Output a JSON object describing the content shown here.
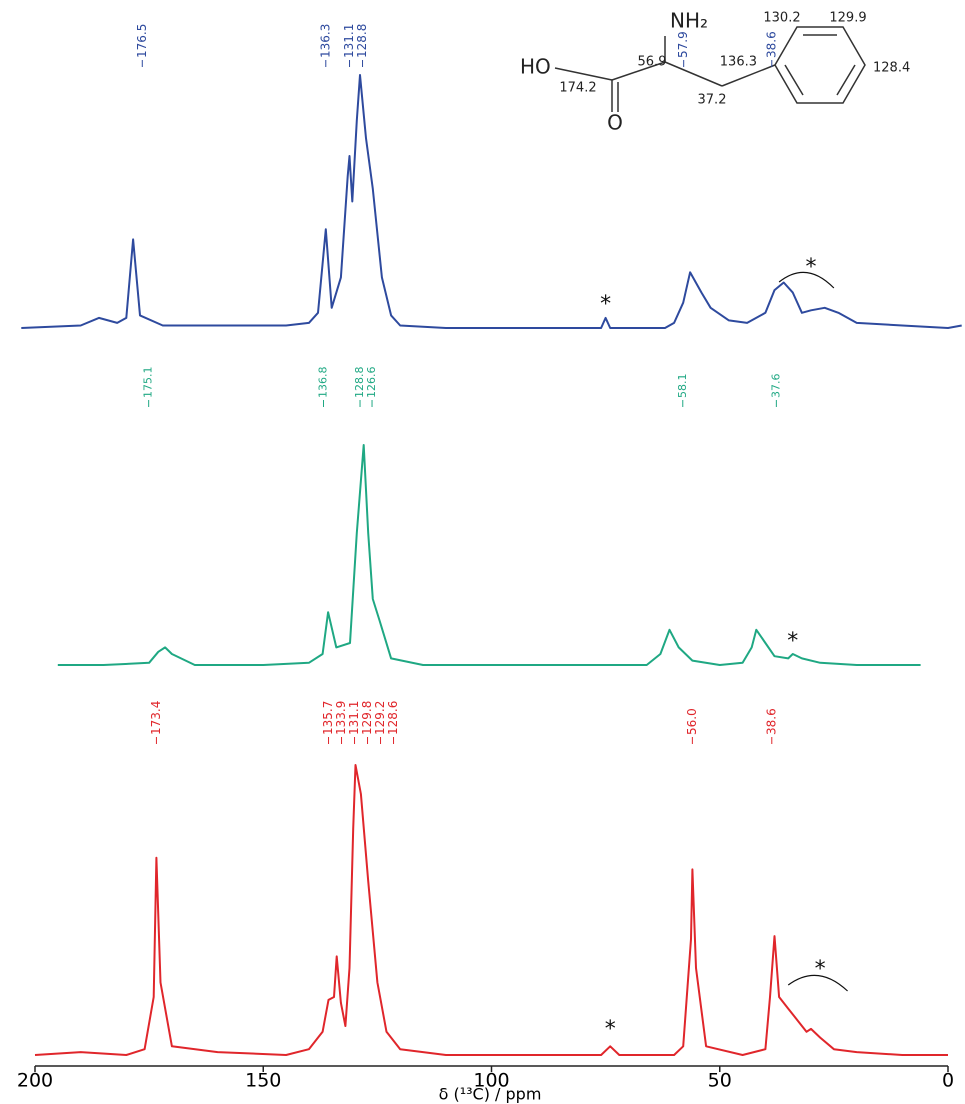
{
  "chart_data": {
    "type": "line",
    "xlim": [
      200,
      0
    ],
    "xticks": [
      200,
      150,
      100,
      50,
      0
    ],
    "xlabel": "δ (¹³C) / ppm",
    "ylim": [
      0,
      100
    ],
    "series": [
      {
        "color": "#2e4a9e",
        "x": [
          203,
          190,
          186,
          182,
          180,
          178.5,
          177,
          172,
          160,
          145,
          140,
          138,
          136.3,
          135,
          133,
          131.5,
          131.1,
          130.5,
          129.5,
          128.8,
          127.5,
          126,
          124,
          122,
          120,
          110,
          100,
          90,
          80,
          76,
          75,
          74,
          70,
          62,
          60,
          58,
          56.5,
          54,
          52,
          48,
          44,
          40,
          38,
          36,
          34,
          32,
          30,
          27,
          24,
          20,
          10,
          0,
          -3
        ],
        "values": [
          0,
          1,
          4,
          2,
          4,
          35,
          5,
          1,
          1,
          1,
          2,
          6,
          39,
          8,
          20,
          60,
          68,
          50,
          82,
          100,
          75,
          55,
          20,
          5,
          1,
          0,
          0,
          0,
          0,
          0,
          4,
          0,
          0,
          0,
          2,
          10,
          22,
          14,
          8,
          3,
          2,
          6,
          15,
          18,
          14,
          6,
          7,
          8,
          6,
          2,
          1,
          0,
          1
        ],
        "peak_labels": [
          176.5,
          136.3,
          131.1,
          128.8,
          57.9,
          38.6
        ],
        "annotations": [
          {
            "text": "*",
            "x": 75
          },
          {
            "text": "*",
            "x": 30
          }
        ]
      },
      {
        "color": "#1fa883",
        "x": [
          195,
          185,
          175,
          173,
          171.5,
          170,
          165,
          150,
          140,
          137,
          135.8,
          134,
          131,
          129.5,
          128,
          127,
          126,
          124.5,
          122,
          115,
          100,
          80,
          66,
          63,
          61,
          59,
          56,
          50,
          45,
          43,
          42,
          40,
          38,
          35,
          34,
          32,
          28,
          20,
          10,
          6
        ],
        "values": [
          0,
          0,
          1,
          6,
          8,
          5,
          0,
          0,
          1,
          5,
          24,
          8,
          10,
          60,
          100,
          60,
          30,
          20,
          3,
          0,
          0,
          0,
          0,
          5,
          16,
          8,
          2,
          0,
          1,
          8,
          16,
          10,
          4,
          3,
          5,
          3,
          1,
          0,
          0,
          0
        ],
        "peak_labels": [
          175.1,
          136.8,
          128.8,
          126.6,
          58.1,
          37.6
        ],
        "annotations": [
          {
            "text": "*",
            "x": 34
          }
        ]
      },
      {
        "color": "#e0262b",
        "x": [
          200,
          190,
          180,
          176,
          174,
          173.4,
          172.5,
          170,
          160,
          145,
          140,
          137,
          135.7,
          134.5,
          133.9,
          133,
          132,
          131.1,
          130.3,
          129.8,
          128.6,
          127,
          125,
          123,
          120,
          110,
          90,
          76,
          74,
          72,
          60,
          58,
          56.3,
          56,
          55.2,
          53,
          45,
          40,
          39,
          38,
          37,
          35,
          33,
          31,
          30,
          28,
          25,
          20,
          10,
          0
        ],
        "values": [
          0,
          1,
          0,
          2,
          20,
          68,
          25,
          3,
          1,
          0,
          2,
          8,
          19,
          20,
          34,
          18,
          10,
          30,
          78,
          100,
          90,
          60,
          25,
          8,
          2,
          0,
          0,
          0,
          3,
          0,
          0,
          3,
          40,
          64,
          30,
          3,
          0,
          2,
          20,
          41,
          20,
          16,
          12,
          8,
          9,
          6,
          2,
          1,
          0,
          0
        ],
        "peak_labels": [
          173.4,
          135.7,
          133.9,
          131.1,
          129.8,
          129.2,
          128.6,
          {
            "value": 56.0,
            "label": "56.0"
          },
          38.6
        ],
        "annotations": [
          {
            "text": "*",
            "x": 74
          },
          {
            "text": "*",
            "x": 28
          }
        ]
      }
    ],
    "structure": {
      "labels": [
        "HO",
        "NH₂",
        56.9,
        174.2,
        "O",
        37.2,
        136.3,
        130.2,
        129.9,
        128.4
      ]
    }
  }
}
